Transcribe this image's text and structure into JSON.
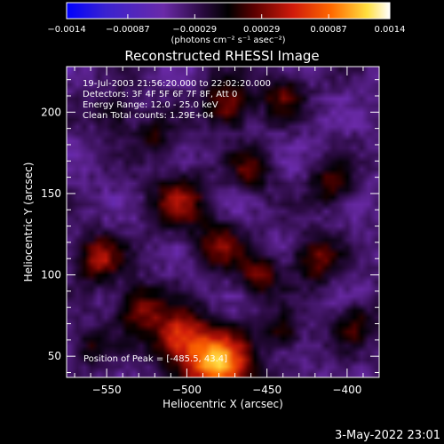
{
  "chart_data": {
    "type": "heatmap",
    "title": "Reconstructed RHESSI Image",
    "xlabel": "Heliocentric X (arcsec)",
    "ylabel": "Heliocentric Y (arcsec)",
    "xlim": [
      -575,
      -380
    ],
    "ylim": [
      37,
      228
    ],
    "x_ticks": [
      -550,
      -500,
      -450,
      -400
    ],
    "x_tick_labels": [
      "−550",
      "−500",
      "−450",
      "−400"
    ],
    "y_ticks": [
      50,
      100,
      150,
      200
    ],
    "y_tick_labels": [
      "50",
      "100",
      "150",
      "200"
    ],
    "colorbar": {
      "range": [
        -0.0014,
        0.0014
      ],
      "tick_values": [
        -0.0014,
        -0.00087,
        -0.00029,
        0.00029,
        0.00087,
        0.0014
      ],
      "tick_labels": [
        "−0.0014",
        "−0.00087",
        "−0.00029",
        "0.00029",
        "0.00087",
        "0.0014"
      ],
      "unit_label": "(photons cm⁻² s⁻¹ asec⁻²)",
      "colors": [
        "#0000ff",
        "#5522bb",
        "#6a2aa8",
        "#000000",
        "#7a0000",
        "#e8300a",
        "#ff7a00",
        "#ffe650",
        "#ffffff"
      ]
    },
    "annotations": [
      "19-Jul-2003 21:56:20.000 to 22:02:20.000",
      "Detectors: 3F 4F 5F 6F 7F 8F, Att 0",
      "Energy Range: 12.0 - 25.0 keV",
      "Clean     Total counts: 1.29E+04"
    ],
    "peak_label": "Position of Peak = [-485.5, 43.4]",
    "sources": [
      {
        "x": -480,
        "y": 45,
        "strength": 1.0,
        "sigma": 14
      },
      {
        "x": -505,
        "y": 62,
        "strength": 0.7,
        "sigma": 12
      },
      {
        "x": -530,
        "y": 80,
        "strength": 0.5,
        "sigma": 10
      },
      {
        "x": -555,
        "y": 110,
        "strength": 0.55,
        "sigma": 10
      },
      {
        "x": -505,
        "y": 145,
        "strength": 0.5,
        "sigma": 12
      },
      {
        "x": -480,
        "y": 118,
        "strength": 0.45,
        "sigma": 10
      },
      {
        "x": -455,
        "y": 100,
        "strength": 0.45,
        "sigma": 9
      },
      {
        "x": -460,
        "y": 165,
        "strength": 0.4,
        "sigma": 9
      },
      {
        "x": -475,
        "y": 205,
        "strength": 0.55,
        "sigma": 10
      },
      {
        "x": -440,
        "y": 210,
        "strength": 0.4,
        "sigma": 9
      },
      {
        "x": -410,
        "y": 155,
        "strength": 0.4,
        "sigma": 9
      },
      {
        "x": -420,
        "y": 110,
        "strength": 0.45,
        "sigma": 10
      },
      {
        "x": -395,
        "y": 70,
        "strength": 0.35,
        "sigma": 9
      },
      {
        "x": -440,
        "y": 65,
        "strength": 0.35,
        "sigma": 8
      },
      {
        "x": -545,
        "y": 200,
        "strength": 0.3,
        "sigma": 9
      },
      {
        "x": -520,
        "y": 185,
        "strength": 0.3,
        "sigma": 8
      },
      {
        "x": -560,
        "y": 55,
        "strength": 0.3,
        "sigma": 8
      }
    ]
  },
  "footer": {
    "date": "3-May-2022 23:01"
  }
}
